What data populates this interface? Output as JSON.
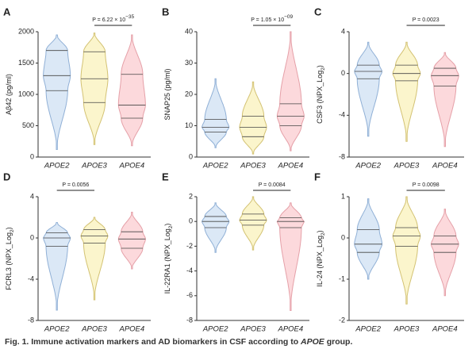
{
  "chart_data": [
    {
      "type": "violin",
      "panel": "A",
      "ylabel": [
        "Aβ42 (pg/ml)"
      ],
      "categories": [
        "APOE2",
        "APOE3",
        "APOE4"
      ],
      "ylim": [
        0,
        2000
      ],
      "yticks": [
        0,
        500,
        1000,
        1500,
        2000
      ],
      "p_label": [
        "P = 6.22 × 10",
        "−35"
      ],
      "p_between": [
        1,
        2
      ],
      "colors": [
        "#dbe8f6",
        "#fbf5cc",
        "#fcd9dc"
      ],
      "line_colors": [
        "#90b0d6",
        "#d3c273",
        "#e5a0a8"
      ],
      "violins": [
        {
          "min": 120,
          "q1": 1060,
          "median": 1300,
          "q3": 1700,
          "max": 1950
        },
        {
          "min": 200,
          "q1": 870,
          "median": 1250,
          "q3": 1680,
          "max": 1980
        },
        {
          "min": 180,
          "q1": 620,
          "median": 830,
          "q3": 1320,
          "max": 1950
        }
      ]
    },
    {
      "type": "violin",
      "panel": "B",
      "ylabel": [
        "SNAP25 (pg/ml)"
      ],
      "categories": [
        "APOE2",
        "APOE3",
        "APOE4"
      ],
      "ylim": [
        0,
        40
      ],
      "yticks": [
        0,
        10,
        20,
        30,
        40
      ],
      "p_label": [
        "P = 1.05 × 10",
        "−09"
      ],
      "p_between": [
        1,
        2
      ],
      "colors": [
        "#dbe8f6",
        "#fbf5cc",
        "#fcd9dc"
      ],
      "line_colors": [
        "#90b0d6",
        "#d3c273",
        "#e5a0a8"
      ],
      "violins": [
        {
          "min": 3,
          "q1": 8,
          "median": 9.5,
          "q3": 12,
          "max": 25
        },
        {
          "min": 1,
          "q1": 6.5,
          "median": 9.5,
          "q3": 13,
          "max": 24
        },
        {
          "min": 2,
          "q1": 10,
          "median": 13,
          "q3": 17,
          "max": 40
        }
      ]
    },
    {
      "type": "violin",
      "panel": "C",
      "ylabel": [
        "CSF3 (NPX_Log",
        "2",
        ")"
      ],
      "categories": [
        "APOE2",
        "APOE3",
        "APOE4"
      ],
      "ylim": [
        -8,
        4
      ],
      "yticks": [
        -8,
        -4,
        0,
        4
      ],
      "p_label": [
        "P = 0.0023"
      ],
      "p_between": [
        1,
        2
      ],
      "colors": [
        "#dbe8f6",
        "#fbf5cc",
        "#fcd9dc"
      ],
      "line_colors": [
        "#90b0d6",
        "#d3c273",
        "#e5a0a8"
      ],
      "violins": [
        {
          "min": -6,
          "q1": -0.5,
          "median": 0.2,
          "q3": 0.8,
          "max": 3
        },
        {
          "min": -6.5,
          "q1": -0.7,
          "median": 0,
          "q3": 0.8,
          "max": 3
        },
        {
          "min": -7,
          "q1": -1.2,
          "median": -0.2,
          "q3": 0.5,
          "max": 2
        }
      ]
    },
    {
      "type": "violin",
      "panel": "D",
      "ylabel": [
        "FCRL3 (NPX_Log",
        "2",
        ")"
      ],
      "categories": [
        "APOE2",
        "APOE3",
        "APOE4"
      ],
      "ylim": [
        -8,
        4
      ],
      "yticks": [
        -8,
        -4,
        0,
        4
      ],
      "p_label": [
        "P = 0.0056"
      ],
      "p_between": [
        0,
        1
      ],
      "colors": [
        "#dbe8f6",
        "#fbf5cc",
        "#fcd9dc"
      ],
      "line_colors": [
        "#90b0d6",
        "#d3c273",
        "#e5a0a8"
      ],
      "violins": [
        {
          "min": -7,
          "q1": -0.8,
          "median": 0,
          "q3": 0.5,
          "max": 1.5
        },
        {
          "min": -6,
          "q1": -0.5,
          "median": 0.2,
          "q3": 0.8,
          "max": 2
        },
        {
          "min": -3,
          "q1": -1,
          "median": -0.1,
          "q3": 0.6,
          "max": 2.5
        }
      ]
    },
    {
      "type": "violin",
      "panel": "E",
      "ylabel": [
        "IL-22RA1 (NPX_Log",
        "2",
        ")"
      ],
      "categories": [
        "APOE2",
        "APOE3",
        "APOE4"
      ],
      "ylim": [
        -8,
        2
      ],
      "yticks": [
        -8,
        -6,
        -4,
        -2,
        0,
        2
      ],
      "p_label": [
        "P = 0.0084"
      ],
      "p_between": [
        1,
        2
      ],
      "colors": [
        "#dbe8f6",
        "#fbf5cc",
        "#fcd9dc"
      ],
      "line_colors": [
        "#90b0d6",
        "#d3c273",
        "#e5a0a8"
      ],
      "violins": [
        {
          "min": -2.5,
          "q1": -0.5,
          "median": 0,
          "q3": 0.4,
          "max": 1.5
        },
        {
          "min": -2.3,
          "q1": -0.3,
          "median": 0.1,
          "q3": 0.6,
          "max": 2
        },
        {
          "min": -7.2,
          "q1": -0.5,
          "median": 0,
          "q3": 0.3,
          "max": 1.5
        }
      ]
    },
    {
      "type": "violin",
      "panel": "F",
      "ylabel": [
        "IL-24 (NPX_Log",
        "2",
        ")"
      ],
      "categories": [
        "APOE2",
        "APOE3",
        "APOE4"
      ],
      "ylim": [
        -2,
        1
      ],
      "yticks": [
        -2,
        -1,
        0,
        1
      ],
      "p_label": [
        "P = 0.0098"
      ],
      "p_between": [
        1,
        2
      ],
      "colors": [
        "#dbe8f6",
        "#fbf5cc",
        "#fcd9dc"
      ],
      "line_colors": [
        "#90b0d6",
        "#d3c273",
        "#e5a0a8"
      ],
      "violins": [
        {
          "min": -1,
          "q1": -0.35,
          "median": -0.15,
          "q3": 0.2,
          "max": 0.95
        },
        {
          "min": -1.6,
          "q1": -0.2,
          "median": 0.05,
          "q3": 0.25,
          "max": 1
        },
        {
          "min": -1.4,
          "q1": -0.35,
          "median": -0.15,
          "q3": 0.05,
          "max": 0.7
        }
      ]
    }
  ],
  "caption": [
    "Fig. 1. Immune activation markers and AD biomarkers in CSF according to ",
    "APOE",
    " group."
  ]
}
